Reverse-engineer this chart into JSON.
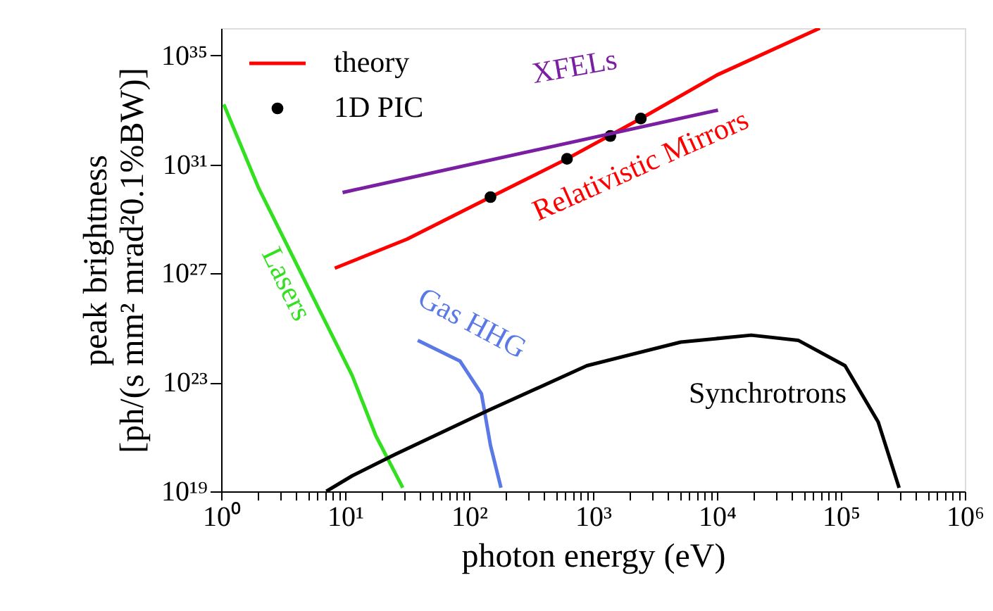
{
  "chart_data": {
    "type": "line",
    "xlabel": "photon energy (eV)",
    "ylabel": "peak brightness\n[ph/(s mm² mrad²0.1%BW)]",
    "log": "xy",
    "grid": false,
    "legend": "top left",
    "xlim": [
      1,
      1000000
    ],
    "ylim": [
      1e+19,
      1e+36
    ],
    "xticks": [
      {
        "value": 1,
        "label": "10⁰"
      },
      {
        "value": 2,
        "label": null
      },
      {
        "value": 3,
        "label": null
      },
      {
        "value": 4,
        "label": null
      },
      {
        "value": 5,
        "label": null
      },
      {
        "value": 6,
        "label": null
      },
      {
        "value": 7,
        "label": null
      },
      {
        "value": 8,
        "label": null
      },
      {
        "value": 9,
        "label": null
      },
      {
        "value": 10,
        "label": "10¹"
      },
      {
        "value": 20,
        "label": null
      },
      {
        "value": 30,
        "label": null
      },
      {
        "value": 40,
        "label": null
      },
      {
        "value": 50,
        "label": null
      },
      {
        "value": 60,
        "label": null
      },
      {
        "value": 70,
        "label": null
      },
      {
        "value": 80,
        "label": null
      },
      {
        "value": 90,
        "label": null
      },
      {
        "value": 100,
        "label": "10²"
      },
      {
        "value": 200,
        "label": null
      },
      {
        "value": 300,
        "label": null
      },
      {
        "value": 400,
        "label": null
      },
      {
        "value": 500,
        "label": null
      },
      {
        "value": 600,
        "label": null
      },
      {
        "value": 700,
        "label": null
      },
      {
        "value": 800,
        "label": null
      },
      {
        "value": 900,
        "label": null
      },
      {
        "value": 1000,
        "label": "10³"
      },
      {
        "value": 2000,
        "label": null
      },
      {
        "value": 3000,
        "label": null
      },
      {
        "value": 4000,
        "label": null
      },
      {
        "value": 5000,
        "label": null
      },
      {
        "value": 6000,
        "label": null
      },
      {
        "value": 7000,
        "label": null
      },
      {
        "value": 8000,
        "label": null
      },
      {
        "value": 9000,
        "label": null
      },
      {
        "value": 10000,
        "label": "10⁴"
      },
      {
        "value": 20000,
        "label": null
      },
      {
        "value": 30000,
        "label": null
      },
      {
        "value": 40000,
        "label": null
      },
      {
        "value": 50000,
        "label": null
      },
      {
        "value": 60000,
        "label": null
      },
      {
        "value": 70000,
        "label": null
      },
      {
        "value": 80000,
        "label": null
      },
      {
        "value": 90000,
        "label": null
      },
      {
        "value": 100000,
        "label": "10⁵"
      },
      {
        "value": 200000,
        "label": null
      },
      {
        "value": 300000,
        "label": null
      },
      {
        "value": 400000,
        "label": null
      },
      {
        "value": 500000,
        "label": null
      },
      {
        "value": 600000,
        "label": null
      },
      {
        "value": 700000,
        "label": null
      },
      {
        "value": 800000,
        "label": null
      },
      {
        "value": 900000,
        "label": null
      },
      {
        "value": 1000000,
        "label": "10⁶"
      }
    ],
    "yticks": [
      {
        "value": 1e+19,
        "label": "10¹⁹"
      },
      {
        "value": 1e+23,
        "label": "10²³"
      },
      {
        "value": 1e+27,
        "label": "10²⁷"
      },
      {
        "value": 1e+31,
        "label": "10³¹"
      },
      {
        "value": 1e+35,
        "label": "10³⁵"
      }
    ],
    "series": [
      {
        "name": "theory",
        "color": "#ff0000",
        "x": [
          8.26,
          31.6,
          149,
          617,
          2430,
          10000,
          67600
        ],
        "values": [
          1.55e+27,
          1.8e+28,
          6.3e+29,
          1.6e+31,
          4.8e+32,
          1.9e+34,
          1e+36
        ]
      },
      {
        "name": "1D PIC",
        "type": "scatter",
        "marker": "circle",
        "color": "#000000",
        "x": [
          149,
          617,
          1380,
          2430
        ],
        "values": [
          6.3e+29,
          1.6e+31,
          1.1e+32,
          4.8e+32
        ]
      },
      {
        "color": "#7b1fa2",
        "x": [
          9.55,
          10200
        ],
        "values": [
          9.3e+29,
          9.8e+32
        ]
      },
      {
        "color": "#33e020",
        "x": [
          1.05,
          2.0,
          4.76,
          11.4,
          17.7,
          29.2
        ],
        "values": [
          1.6e+33,
          1.4e+30,
          5.1e+26,
          1.8e+23,
          1.1e+21,
          1.35e+19
        ]
      },
      {
        "color": "#5a78e6",
        "x": [
          38.6,
          84.7,
          126,
          149,
          181
        ],
        "values": [
          3.5e+24,
          6e+23,
          3.8e+22,
          4.8e+20,
          1.35e+19
        ]
      },
      {
        "color": "#000000",
        "x": [
          7.06,
          11.4,
          25,
          143,
          893,
          5100,
          18900,
          45200,
          108000,
          200000,
          295000
        ],
        "values": [
          1e+19,
          3.7e+19,
          2.2e+20,
          9.3e+21,
          4.1e+23,
          3e+24,
          5.4e+24,
          3.5e+24,
          4.1e+23,
          3.5e+21,
          1.35e+19
        ]
      }
    ],
    "annotations": [
      "Relativistic Mirrors",
      "XFELs",
      "Lasers",
      "Gas HHG",
      "Synchrotrons"
    ]
  }
}
